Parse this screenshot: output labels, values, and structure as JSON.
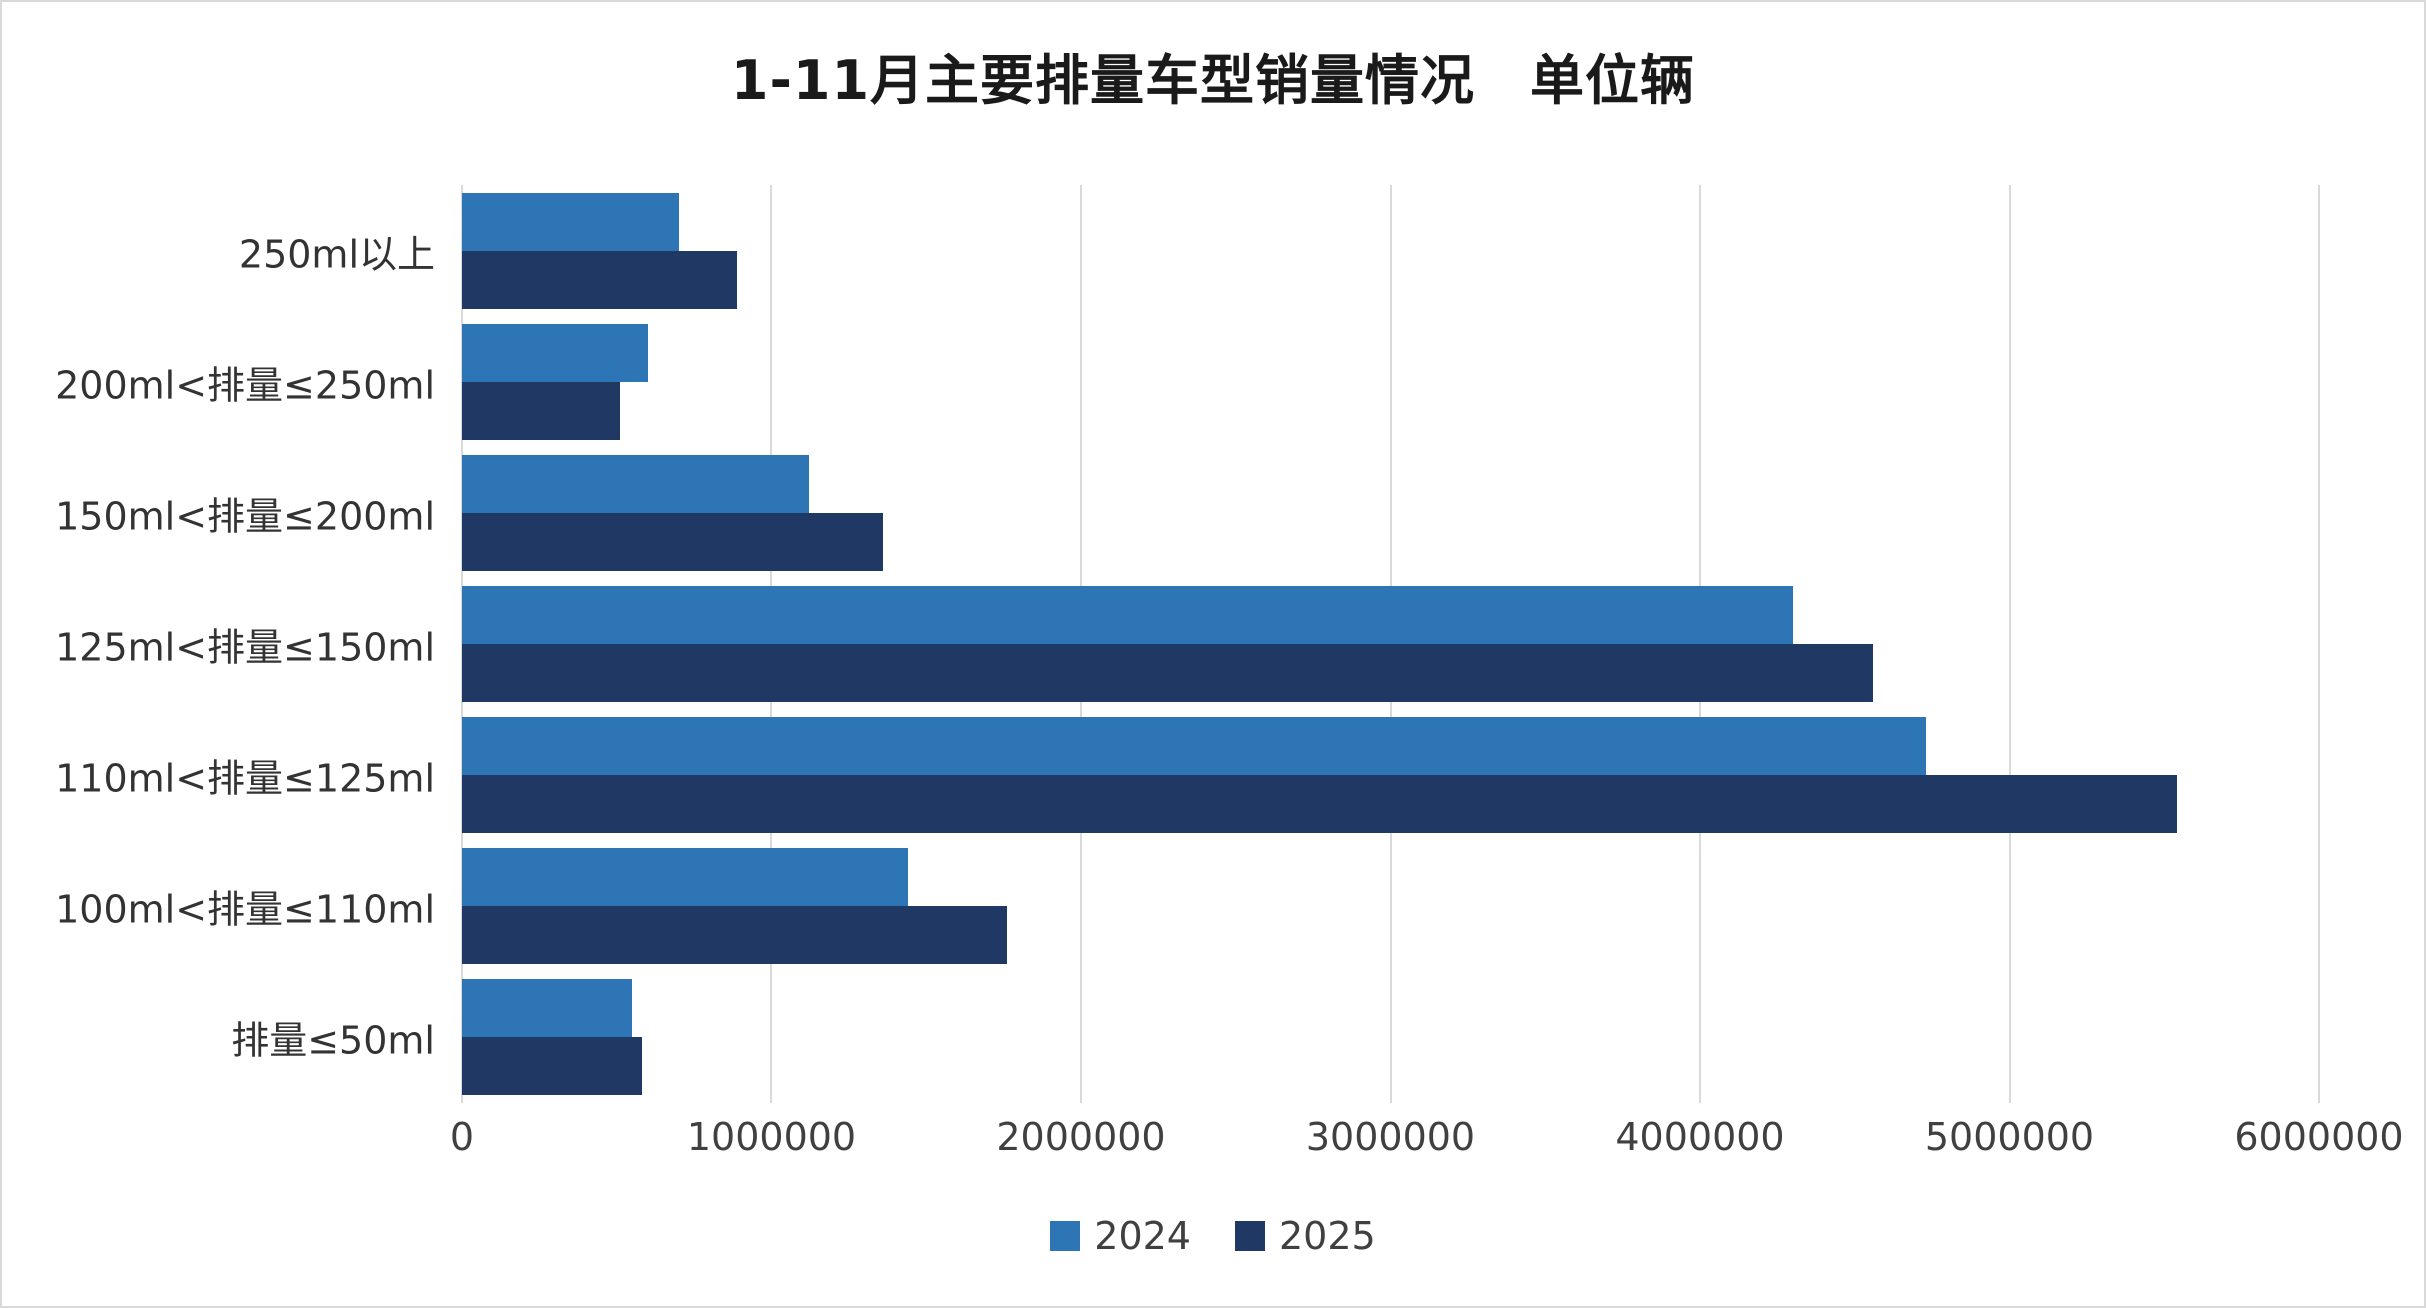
{
  "chart_data": {
    "type": "bar",
    "orientation": "horizontal",
    "title": "1-11月主要排量车型销量情况　单位辆",
    "categories": [
      "250ml以上",
      "200ml<排量≤250ml",
      "150ml<排量≤200ml",
      "125ml<排量≤150ml",
      "110ml<排量≤125ml",
      "100ml<排量≤110ml",
      "排量≤50ml"
    ],
    "series": [
      {
        "name": "2024",
        "color": "#2E75B6",
        "values": [
          700000,
          600000,
          1120000,
          4300000,
          4730000,
          1440000,
          550000
        ]
      },
      {
        "name": "2025",
        "color": "#1F3864",
        "values": [
          890000,
          510000,
          1360000,
          4560000,
          5540000,
          1760000,
          580000
        ]
      }
    ],
    "xlim": [
      0,
      6000000
    ],
    "x_ticks": [
      "0",
      "1000000",
      "2000000",
      "3000000",
      "4000000",
      "5000000",
      "6000000"
    ],
    "grid": "vertical",
    "legend_position": "bottom-center"
  },
  "colors": {
    "gridline": "#D9D9D9",
    "axis_text": "#404040",
    "title_text": "#1A1A1A",
    "background": "#FFFFFF",
    "border": "#D9D9D9"
  }
}
